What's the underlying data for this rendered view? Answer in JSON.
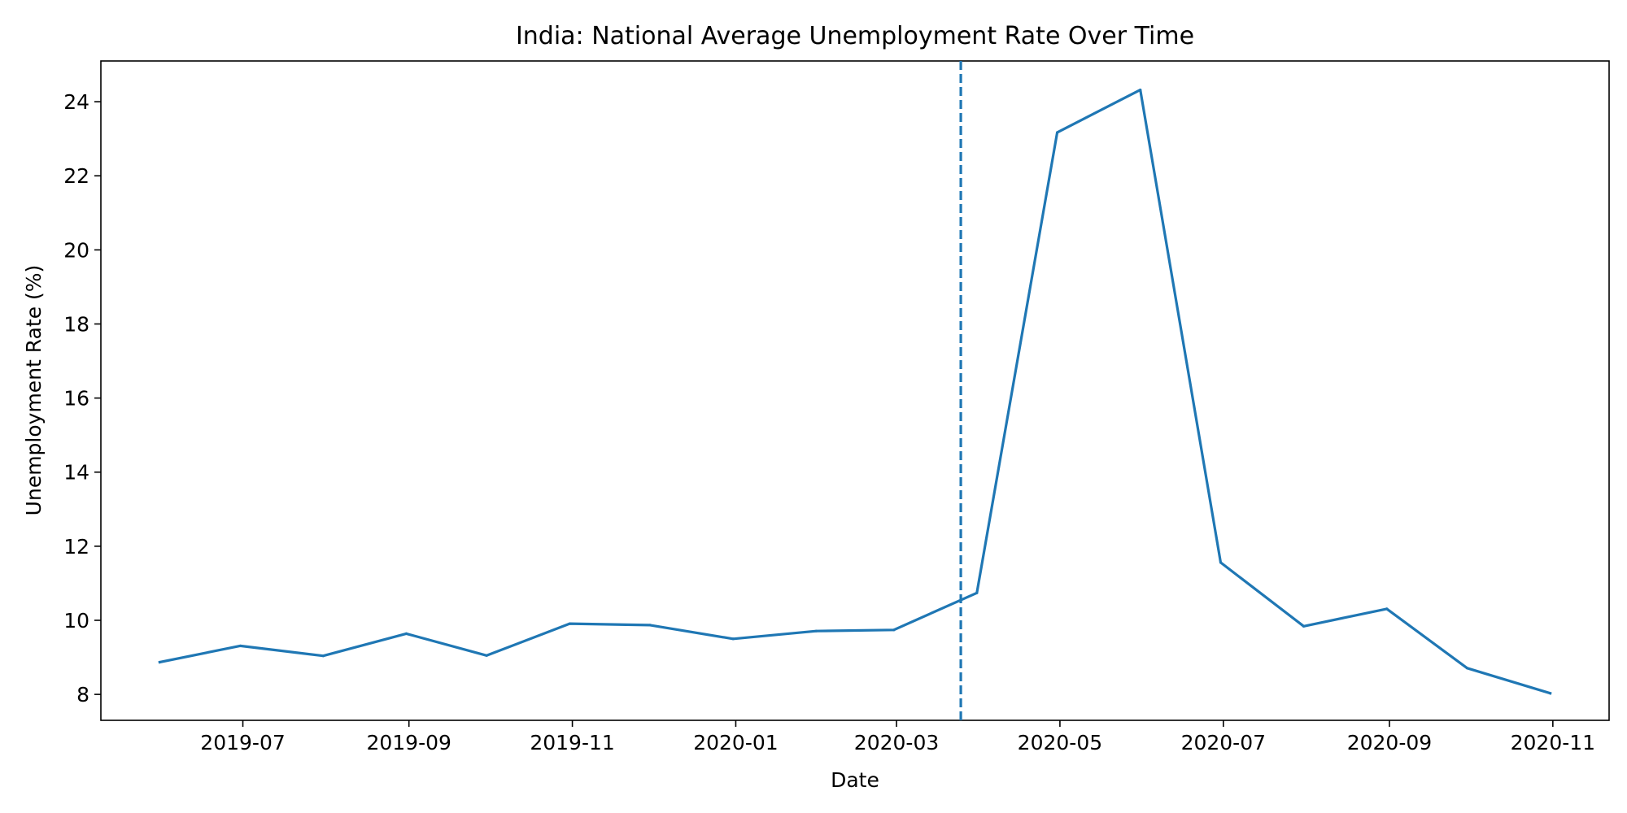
{
  "chart_data": {
    "type": "line",
    "title": "India: National Average Unemployment Rate Over Time",
    "xlabel": "Date",
    "ylabel": "Unemployment Rate (%)",
    "x_tick_labels": [
      "2019-07",
      "2019-09",
      "2019-11",
      "2020-01",
      "2020-03",
      "2020-05",
      "2020-07",
      "2020-09",
      "2020-11"
    ],
    "y_tick_labels": [
      "8",
      "10",
      "12",
      "14",
      "16",
      "18",
      "20",
      "22",
      "24"
    ],
    "ylim": [
      7.3,
      25.1
    ],
    "xlim": [
      "2019-05-09",
      "2020-11-22"
    ],
    "grid": false,
    "series": [
      {
        "color": "#1f77b4",
        "points": [
          {
            "x": "2019-05-31",
            "y": 8.87
          },
          {
            "x": "2019-06-30",
            "y": 9.31
          },
          {
            "x": "2019-07-31",
            "y": 9.04
          },
          {
            "x": "2019-08-31",
            "y": 9.64
          },
          {
            "x": "2019-09-30",
            "y": 9.05
          },
          {
            "x": "2019-10-31",
            "y": 9.91
          },
          {
            "x": "2019-11-30",
            "y": 9.87
          },
          {
            "x": "2019-12-31",
            "y": 9.5
          },
          {
            "x": "2020-01-31",
            "y": 9.71
          },
          {
            "x": "2020-02-29",
            "y": 9.74
          },
          {
            "x": "2020-03-31",
            "y": 10.74
          },
          {
            "x": "2020-04-30",
            "y": 23.17
          },
          {
            "x": "2020-05-31",
            "y": 24.32
          },
          {
            "x": "2020-06-30",
            "y": 11.56
          },
          {
            "x": "2020-07-31",
            "y": 9.84
          },
          {
            "x": "2020-08-31",
            "y": 10.31
          },
          {
            "x": "2020-09-30",
            "y": 8.71
          },
          {
            "x": "2020-10-31",
            "y": 8.03
          }
        ]
      }
    ],
    "reference_lines": [
      {
        "orientation": "vertical",
        "x": "2020-03-25",
        "style": "dashed",
        "color": "#1f77b4"
      }
    ]
  }
}
